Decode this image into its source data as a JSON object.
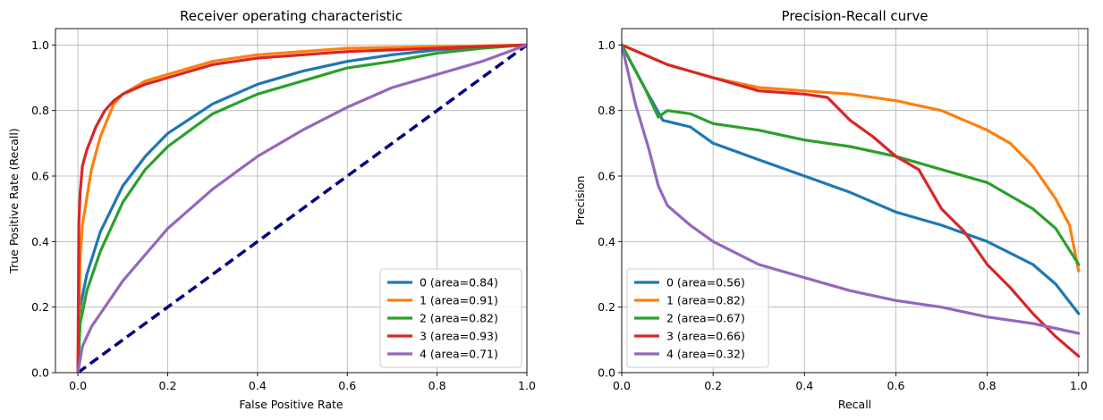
{
  "chart_data": [
    {
      "type": "line",
      "title": "Receiver operating characteristic",
      "xlabel": "False Positive Rate",
      "ylabel": "True Positive Rate (Recall)",
      "xlim": [
        -0.05,
        1.0
      ],
      "ylim": [
        0.0,
        1.05
      ],
      "xticks": [
        "0.0",
        "0.2",
        "0.4",
        "0.6",
        "0.8",
        "1.0"
      ],
      "yticks": [
        "0.0",
        "0.2",
        "0.4",
        "0.6",
        "0.8",
        "1.0"
      ],
      "grid": true,
      "legend_position": "lower-right",
      "series": [
        {
          "name": "0 (area=0.84)",
          "color": "#1f77b4",
          "x": [
            0,
            0.005,
            0.02,
            0.05,
            0.1,
            0.15,
            0.2,
            0.3,
            0.4,
            0.5,
            0.6,
            0.7,
            0.8,
            0.9,
            1.0
          ],
          "y": [
            0,
            0.2,
            0.3,
            0.43,
            0.57,
            0.66,
            0.73,
            0.82,
            0.88,
            0.92,
            0.95,
            0.97,
            0.985,
            0.995,
            1.0
          ]
        },
        {
          "name": "1 (area=0.91)",
          "color": "#ff7f0e",
          "x": [
            0,
            0.005,
            0.01,
            0.03,
            0.05,
            0.08,
            0.1,
            0.15,
            0.2,
            0.3,
            0.4,
            0.5,
            0.6,
            0.8,
            1.0
          ],
          "y": [
            0,
            0.35,
            0.45,
            0.62,
            0.72,
            0.82,
            0.85,
            0.89,
            0.91,
            0.95,
            0.97,
            0.98,
            0.99,
            0.995,
            1.0
          ]
        },
        {
          "name": "2 (area=0.82)",
          "color": "#2ca02c",
          "x": [
            0,
            0.005,
            0.02,
            0.05,
            0.1,
            0.15,
            0.2,
            0.3,
            0.4,
            0.5,
            0.6,
            0.7,
            0.8,
            0.9,
            1.0
          ],
          "y": [
            0,
            0.15,
            0.25,
            0.37,
            0.52,
            0.62,
            0.69,
            0.79,
            0.85,
            0.89,
            0.93,
            0.95,
            0.975,
            0.99,
            1.0
          ]
        },
        {
          "name": "3 (area=0.93)",
          "color": "#d62728",
          "x": [
            0,
            0.002,
            0.005,
            0.01,
            0.02,
            0.04,
            0.06,
            0.08,
            0.1,
            0.15,
            0.2,
            0.3,
            0.4,
            0.6,
            0.8,
            1.0
          ],
          "y": [
            0,
            0.45,
            0.55,
            0.63,
            0.68,
            0.75,
            0.8,
            0.83,
            0.85,
            0.88,
            0.9,
            0.94,
            0.96,
            0.98,
            0.99,
            1.0
          ]
        },
        {
          "name": "4 (area=0.71)",
          "color": "#9467bd",
          "x": [
            0,
            0.01,
            0.03,
            0.05,
            0.1,
            0.15,
            0.2,
            0.3,
            0.4,
            0.5,
            0.6,
            0.7,
            0.8,
            0.9,
            1.0
          ],
          "y": [
            0,
            0.08,
            0.14,
            0.18,
            0.28,
            0.36,
            0.44,
            0.56,
            0.66,
            0.74,
            0.81,
            0.87,
            0.91,
            0.95,
            1.0
          ]
        }
      ],
      "reference_line": {
        "x": [
          0,
          1
        ],
        "y": [
          0,
          1
        ],
        "color": "#000080",
        "style": "dashed"
      }
    },
    {
      "type": "line",
      "title": "Precision-Recall curve",
      "xlabel": "Recall",
      "ylabel": "Precision",
      "xlim": [
        0.0,
        1.02
      ],
      "ylim": [
        0.0,
        1.05
      ],
      "xticks": [
        "0.0",
        "0.2",
        "0.4",
        "0.6",
        "0.8",
        "1.0"
      ],
      "yticks": [
        "0.0",
        "0.2",
        "0.4",
        "0.6",
        "0.8",
        "1.0"
      ],
      "grid": true,
      "legend_position": "lower-left",
      "series": [
        {
          "name": "0 (area=0.56)",
          "color": "#1f77b4",
          "x": [
            0,
            0.05,
            0.09,
            0.15,
            0.2,
            0.3,
            0.4,
            0.5,
            0.6,
            0.7,
            0.8,
            0.9,
            0.95,
            1.0
          ],
          "y": [
            1.0,
            0.87,
            0.77,
            0.75,
            0.7,
            0.65,
            0.6,
            0.55,
            0.49,
            0.45,
            0.4,
            0.33,
            0.27,
            0.18
          ]
        },
        {
          "name": "1 (area=0.82)",
          "color": "#ff7f0e",
          "x": [
            0,
            0.1,
            0.2,
            0.3,
            0.4,
            0.5,
            0.6,
            0.7,
            0.8,
            0.85,
            0.9,
            0.95,
            0.98,
            1.0
          ],
          "y": [
            1.0,
            0.94,
            0.9,
            0.87,
            0.86,
            0.85,
            0.83,
            0.8,
            0.74,
            0.7,
            0.63,
            0.53,
            0.45,
            0.31
          ]
        },
        {
          "name": "2 (area=0.67)",
          "color": "#2ca02c",
          "x": [
            0,
            0.05,
            0.08,
            0.1,
            0.15,
            0.2,
            0.3,
            0.4,
            0.5,
            0.6,
            0.7,
            0.8,
            0.9,
            0.95,
            1.0
          ],
          "y": [
            1.0,
            0.87,
            0.78,
            0.8,
            0.79,
            0.76,
            0.74,
            0.71,
            0.69,
            0.66,
            0.62,
            0.58,
            0.5,
            0.44,
            0.33
          ]
        },
        {
          "name": "3 (area=0.66)",
          "color": "#d62728",
          "x": [
            0,
            0.1,
            0.2,
            0.3,
            0.4,
            0.45,
            0.5,
            0.55,
            0.6,
            0.65,
            0.7,
            0.75,
            0.8,
            0.85,
            0.9,
            0.95,
            1.0
          ],
          "y": [
            1.0,
            0.94,
            0.9,
            0.86,
            0.85,
            0.84,
            0.77,
            0.72,
            0.66,
            0.62,
            0.5,
            0.43,
            0.33,
            0.26,
            0.18,
            0.11,
            0.05
          ]
        },
        {
          "name": "4 (area=0.32)",
          "color": "#9467bd",
          "x": [
            0,
            0.03,
            0.06,
            0.08,
            0.1,
            0.15,
            0.2,
            0.3,
            0.4,
            0.5,
            0.6,
            0.7,
            0.8,
            0.9,
            1.0
          ],
          "y": [
            1.0,
            0.82,
            0.68,
            0.57,
            0.51,
            0.45,
            0.4,
            0.33,
            0.29,
            0.25,
            0.22,
            0.2,
            0.17,
            0.15,
            0.12
          ]
        }
      ]
    }
  ]
}
